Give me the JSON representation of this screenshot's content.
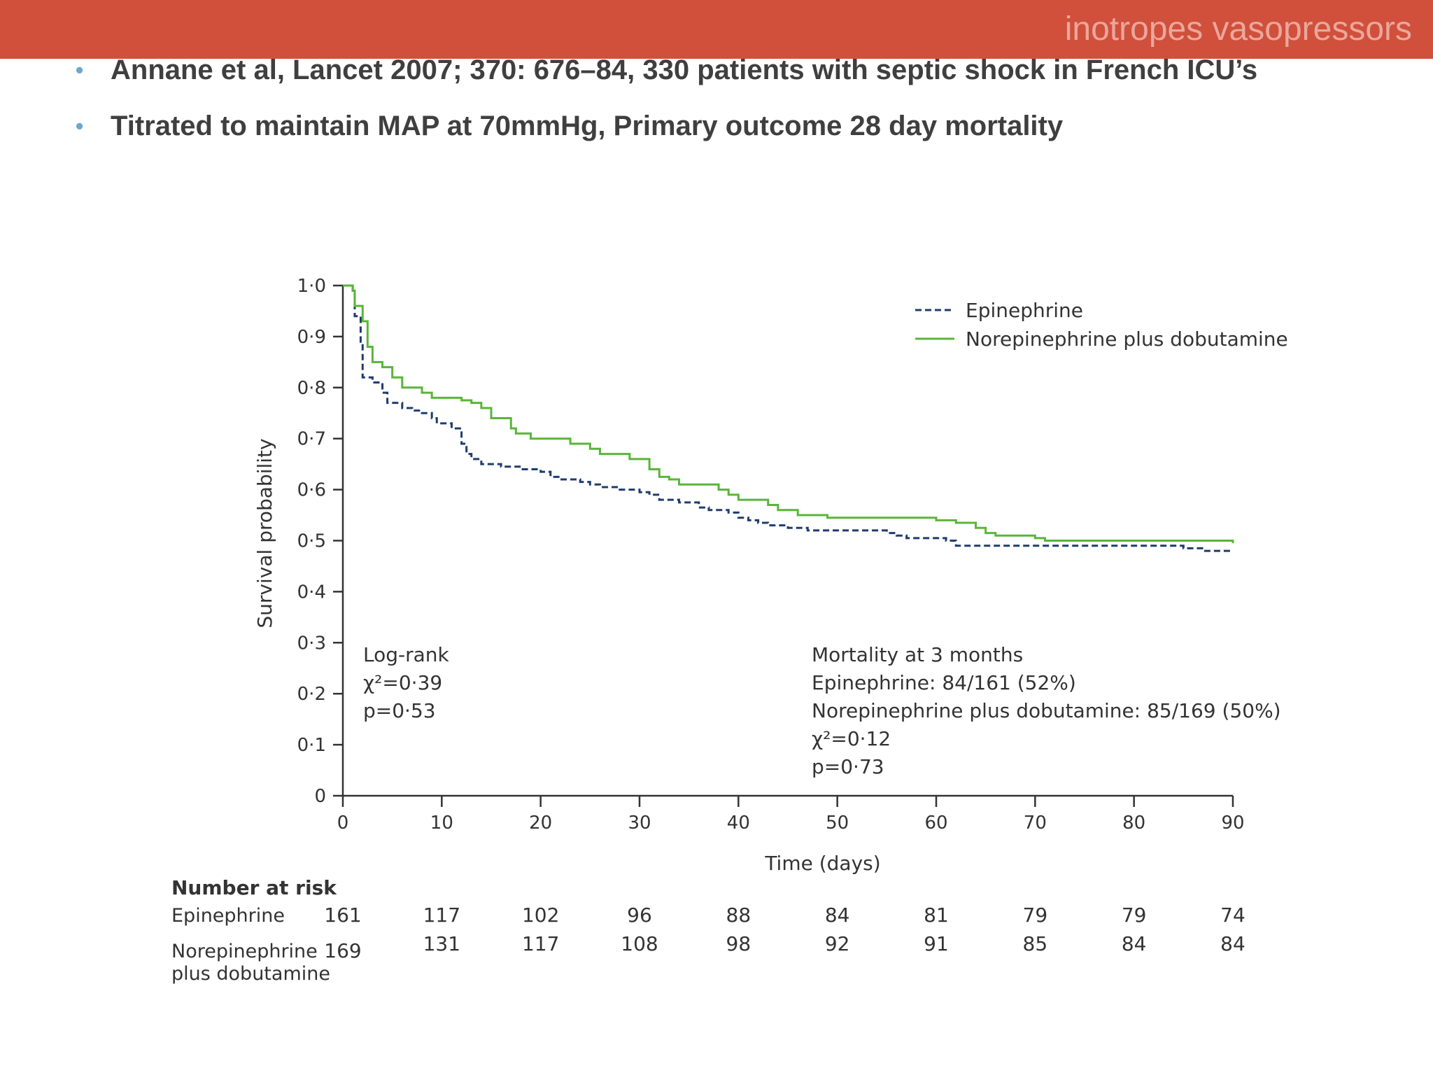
{
  "slide": {
    "title": "inotropes vasopressors",
    "bullets": [
      "Annane et al, Lancet 2007; 370: 676–84, 330 patients with septic shock in French ICU’s",
      "Titrated to maintain MAP at 70mmHg, Primary outcome 28 day mortality"
    ]
  },
  "colors": {
    "header_bar": "#d0503c",
    "bullet": "#6aa8cf",
    "epinephrine": "#1f3c6e",
    "norepinephrine": "#5ab53a"
  },
  "chart_data": {
    "type": "line",
    "subtype": "kaplan-meier",
    "xlabel": "Time (days)",
    "ylabel": "Survival probability",
    "xlim": [
      0,
      90
    ],
    "ylim": [
      0,
      1.0
    ],
    "xticks": [
      "0",
      "10",
      "20",
      "30",
      "40",
      "50",
      "60",
      "70",
      "80",
      "90"
    ],
    "yticks": [
      "0",
      "0·1",
      "0·2",
      "0·3",
      "0·4",
      "0·5",
      "0·6",
      "0·7",
      "0·8",
      "0·9",
      "1·0"
    ],
    "legend_position": "top-right",
    "series": [
      {
        "name": "Epinephrine",
        "style": "dashed",
        "color": "#1f3c6e",
        "steps": [
          [
            0,
            1.0
          ],
          [
            1,
            0.99
          ],
          [
            1.2,
            0.94
          ],
          [
            1.8,
            0.89
          ],
          [
            2,
            0.82
          ],
          [
            3,
            0.81
          ],
          [
            4,
            0.79
          ],
          [
            4.5,
            0.77
          ],
          [
            6,
            0.76
          ],
          [
            7,
            0.755
          ],
          [
            8,
            0.75
          ],
          [
            9,
            0.74
          ],
          [
            9.5,
            0.73
          ],
          [
            11,
            0.72
          ],
          [
            12,
            0.69
          ],
          [
            12.5,
            0.67
          ],
          [
            13,
            0.66
          ],
          [
            14,
            0.65
          ],
          [
            16,
            0.645
          ],
          [
            18,
            0.64
          ],
          [
            20,
            0.635
          ],
          [
            21,
            0.625
          ],
          [
            22,
            0.62
          ],
          [
            24,
            0.615
          ],
          [
            25,
            0.61
          ],
          [
            26,
            0.605
          ],
          [
            28,
            0.6
          ],
          [
            30,
            0.595
          ],
          [
            31,
            0.59
          ],
          [
            32,
            0.58
          ],
          [
            34,
            0.575
          ],
          [
            36,
            0.565
          ],
          [
            37,
            0.56
          ],
          [
            39,
            0.555
          ],
          [
            40,
            0.545
          ],
          [
            41,
            0.54
          ],
          [
            42,
            0.535
          ],
          [
            43,
            0.53
          ],
          [
            45,
            0.525
          ],
          [
            47,
            0.52
          ],
          [
            55,
            0.515
          ],
          [
            56,
            0.51
          ],
          [
            57,
            0.505
          ],
          [
            61,
            0.5
          ],
          [
            62,
            0.49
          ],
          [
            85,
            0.485
          ],
          [
            87,
            0.48
          ],
          [
            90,
            0.48
          ]
        ]
      },
      {
        "name": "Norepinephrine plus dobutamine",
        "style": "solid",
        "color": "#5ab53a",
        "steps": [
          [
            0,
            1.0
          ],
          [
            1,
            0.99
          ],
          [
            1.2,
            0.96
          ],
          [
            2,
            0.93
          ],
          [
            2.5,
            0.88
          ],
          [
            3,
            0.85
          ],
          [
            4,
            0.84
          ],
          [
            5,
            0.82
          ],
          [
            6,
            0.8
          ],
          [
            8,
            0.79
          ],
          [
            9,
            0.78
          ],
          [
            12,
            0.775
          ],
          [
            13,
            0.77
          ],
          [
            14,
            0.76
          ],
          [
            15,
            0.74
          ],
          [
            17,
            0.72
          ],
          [
            17.5,
            0.71
          ],
          [
            19,
            0.7
          ],
          [
            23,
            0.69
          ],
          [
            25,
            0.68
          ],
          [
            26,
            0.67
          ],
          [
            29,
            0.66
          ],
          [
            31,
            0.64
          ],
          [
            32,
            0.625
          ],
          [
            33,
            0.62
          ],
          [
            34,
            0.61
          ],
          [
            38,
            0.6
          ],
          [
            39,
            0.59
          ],
          [
            40,
            0.58
          ],
          [
            43,
            0.57
          ],
          [
            44,
            0.56
          ],
          [
            46,
            0.55
          ],
          [
            49,
            0.545
          ],
          [
            60,
            0.54
          ],
          [
            62,
            0.535
          ],
          [
            64,
            0.525
          ],
          [
            65,
            0.515
          ],
          [
            66,
            0.51
          ],
          [
            70,
            0.505
          ],
          [
            71,
            0.5
          ],
          [
            90,
            0.495
          ]
        ]
      }
    ],
    "annotations": {
      "logrank": [
        "Log-rank",
        "χ²=0·39",
        "p=0·53"
      ],
      "mortality": [
        "Mortality at 3 months",
        "Epinephrine: 84/161 (52%)",
        "Norepinephrine plus dobutamine: 85/169 (50%)",
        "χ²=0·12",
        "p=0·73"
      ]
    },
    "risk_table": {
      "title": "Number at risk",
      "rows": [
        {
          "label": [
            "Epinephrine"
          ],
          "values": [
            "161",
            "117",
            "102",
            "96",
            "88",
            "84",
            "81",
            "79",
            "79",
            "74"
          ]
        },
        {
          "label": [
            "Norepinephrine",
            "plus dobutamine"
          ],
          "values": [
            "169",
            "131",
            "117",
            "108",
            "98",
            "92",
            "91",
            "85",
            "84",
            "84"
          ]
        }
      ]
    }
  }
}
